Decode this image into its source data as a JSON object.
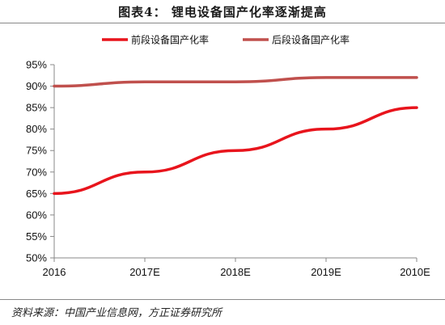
{
  "title": "图表4：  锂电设备国产化率逐渐提高",
  "source": "资料来源：中国产业信息网，方正证券研究所",
  "chart_data": {
    "type": "line",
    "categories": [
      "2016",
      "2017E",
      "2018E",
      "2019E",
      "2010E"
    ],
    "series": [
      {
        "name": "前段设备国产化率",
        "values": [
          65,
          70,
          75,
          80,
          85
        ],
        "color": "#e8141c"
      },
      {
        "name": "后段设备国产化率",
        "values": [
          90,
          91,
          91,
          92,
          92
        ],
        "color": "#c0504d"
      }
    ],
    "ylim": [
      50,
      95
    ],
    "yticks": [
      "50%",
      "55%",
      "60%",
      "65%",
      "70%",
      "75%",
      "80%",
      "85%",
      "90%",
      "95%"
    ],
    "legend_position": "top",
    "grid": false
  }
}
